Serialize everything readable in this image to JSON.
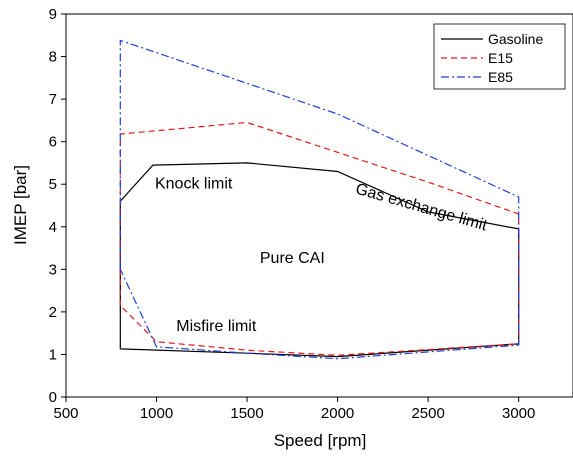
{
  "chart_data": {
    "type": "line",
    "xlabel": "Speed [rpm]",
    "ylabel": "IMEP [bar]",
    "xlim": [
      500,
      3300
    ],
    "ylim": [
      0,
      9
    ],
    "xticks": [
      500,
      1000,
      1500,
      2000,
      2500,
      3000
    ],
    "yticks": [
      0,
      1,
      2,
      3,
      4,
      5,
      6,
      7,
      8,
      9
    ],
    "grid": false,
    "legend_position": "top-right",
    "series": [
      {
        "name": "Gasoline",
        "color": "#000000",
        "dash": "solid",
        "x": [
          800,
          800,
          980,
          1500,
          2000,
          2500,
          3000,
          3000,
          2000,
          1500,
          800
        ],
        "y": [
          1.13,
          4.6,
          5.45,
          5.5,
          5.3,
          4.35,
          3.95,
          1.25,
          0.95,
          1.03,
          1.13
        ]
      },
      {
        "name": "E15",
        "color": "#e31a1c",
        "dash": "dashed",
        "x": [
          800,
          800,
          1500,
          2000,
          2500,
          3000,
          3000,
          2000,
          1500,
          1000,
          800
        ],
        "y": [
          2.15,
          6.18,
          6.45,
          5.75,
          5.05,
          4.3,
          1.25,
          0.98,
          1.1,
          1.3,
          2.15
        ]
      },
      {
        "name": "E85",
        "color": "#1f3fd6",
        "dash": "dashdot",
        "x": [
          800,
          800,
          2000,
          3000,
          3000,
          2000,
          1500,
          1000,
          800
        ],
        "y": [
          3.0,
          8.38,
          6.65,
          4.7,
          1.22,
          0.9,
          1.03,
          1.18,
          3.0
        ]
      }
    ],
    "annotations": [
      {
        "text": "Knock limit",
        "x": 1205,
        "y": 4.9,
        "rotate": 0
      },
      {
        "text": "Gas exchange limit",
        "x": 2455,
        "y": 4.35,
        "rotate": 16
      },
      {
        "text": "Pure CAI",
        "x": 1750,
        "y": 3.15,
        "rotate": 0
      },
      {
        "text": "Misfire limit",
        "x": 1330,
        "y": 1.55,
        "rotate": 0
      }
    ]
  }
}
